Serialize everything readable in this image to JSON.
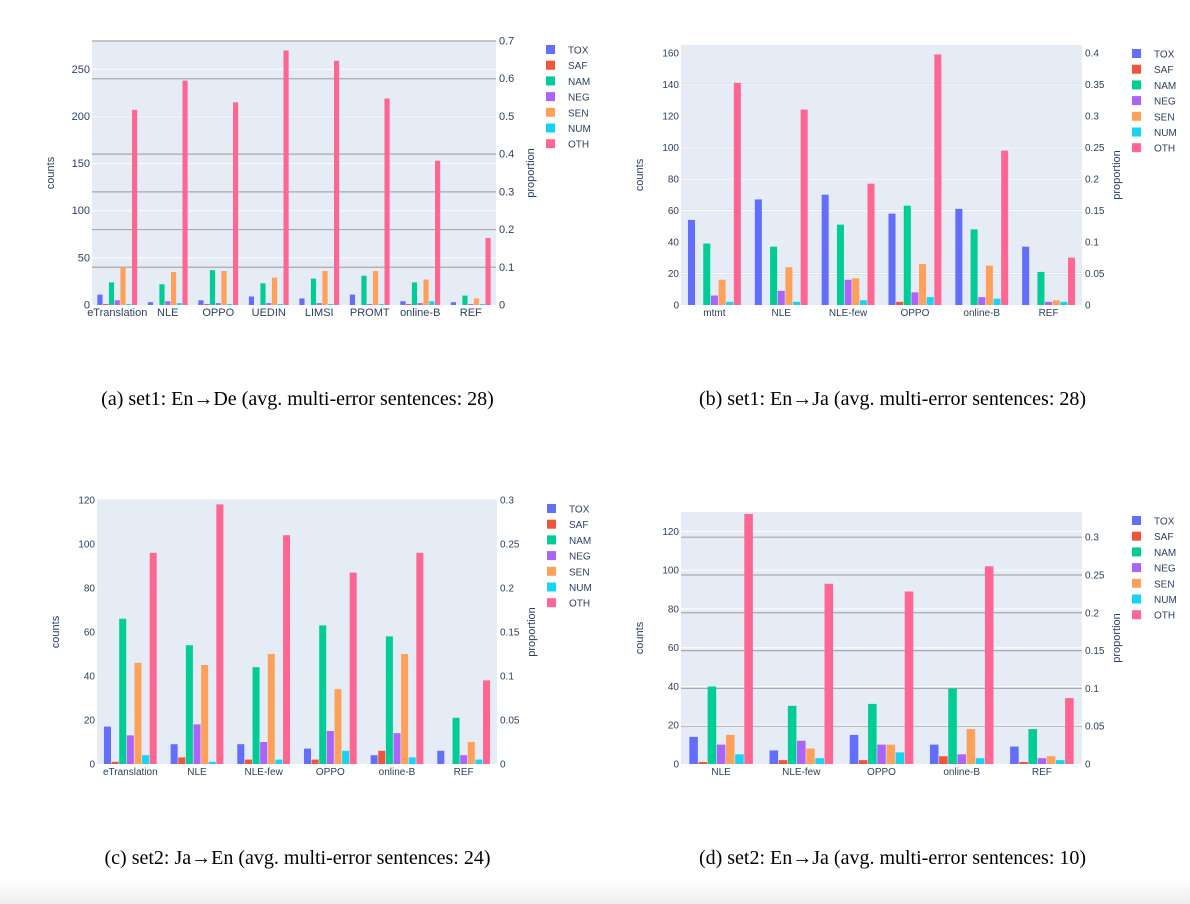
{
  "legend_entries": [
    "TOX",
    "SAF",
    "NAM",
    "NEG",
    "SEN",
    "NUM",
    "OTH"
  ],
  "colors": {
    "TOX": "#636efa",
    "SAF": "#ef553b",
    "NAM": "#00cc96",
    "NEG": "#ab63fa",
    "SEN": "#ffa15a",
    "NUM": "#19d3f3",
    "OTH": "#ff6692",
    "plot_bg": "#e5ecf6",
    "grid_primary": "#ffffff",
    "grid_secondary": "#a9a9a9",
    "axis_text": "#2a3f5f"
  },
  "chart_data": [
    {
      "type": "bar",
      "caption": "(a) set1: En→De (avg. multi-error sentences: 28)",
      "ylabel": "counts",
      "y2label": "proportion",
      "categories": [
        "eTranslation",
        "NLE",
        "OPPO",
        "UEDIN",
        "LIMSI",
        "PROMT",
        "online-B",
        "REF"
      ],
      "ylim": [
        0,
        280
      ],
      "yticks": [
        0,
        50,
        100,
        150,
        200,
        250
      ],
      "y2lim": [
        0,
        0.7
      ],
      "y2ticks": [
        0,
        0.1,
        0.2,
        0.3,
        0.4,
        0.5,
        0.6,
        0.7
      ],
      "legend_position": "top-right",
      "series": [
        {
          "name": "TOX",
          "values": [
            11,
            3,
            5,
            9,
            7,
            11,
            4,
            3
          ]
        },
        {
          "name": "SAF",
          "values": [
            1,
            0,
            1,
            0,
            0,
            0,
            1,
            0
          ]
        },
        {
          "name": "NAM",
          "values": [
            24,
            22,
            37,
            23,
            28,
            31,
            24,
            10
          ]
        },
        {
          "name": "NEG",
          "values": [
            5,
            4,
            2,
            2,
            2,
            1,
            2,
            1
          ]
        },
        {
          "name": "SEN",
          "values": [
            40,
            35,
            36,
            29,
            36,
            36,
            27,
            7
          ]
        },
        {
          "name": "NUM",
          "values": [
            1,
            2,
            1,
            1,
            1,
            1,
            4,
            1
          ]
        },
        {
          "name": "OTH",
          "values": [
            207,
            238,
            215,
            270,
            259,
            219,
            153,
            71
          ]
        }
      ]
    },
    {
      "type": "bar",
      "caption": "(b) set1: En→Ja (avg. multi-error sentences: 28)",
      "ylabel": "counts",
      "y2label": "proportion",
      "categories": [
        "mtmt",
        "NLE",
        "NLE-few",
        "OPPO",
        "online-B",
        "REF"
      ],
      "ylim": [
        0,
        165
      ],
      "yticks": [
        0,
        20,
        40,
        60,
        80,
        100,
        120,
        140,
        160
      ],
      "y2lim": [
        0,
        0.4125
      ],
      "y2ticks": [
        0,
        0.05,
        0.1,
        0.15,
        0.2,
        0.25,
        0.3,
        0.35,
        0.4
      ],
      "legend_position": "top-right",
      "series": [
        {
          "name": "TOX",
          "values": [
            54,
            67,
            70,
            58,
            61,
            37
          ]
        },
        {
          "name": "SAF",
          "values": [
            0,
            0,
            0,
            2,
            0,
            0
          ]
        },
        {
          "name": "NAM",
          "values": [
            39,
            37,
            51,
            63,
            48,
            21
          ]
        },
        {
          "name": "NEG",
          "values": [
            6,
            9,
            16,
            8,
            5,
            2
          ]
        },
        {
          "name": "SEN",
          "values": [
            16,
            24,
            17,
            26,
            25,
            3
          ]
        },
        {
          "name": "NUM",
          "values": [
            2,
            2,
            3,
            5,
            4,
            2
          ]
        },
        {
          "name": "OTH",
          "values": [
            141,
            124,
            77,
            159,
            98,
            30
          ]
        }
      ]
    },
    {
      "type": "bar",
      "caption": "(c) set2: Ja→En (avg. multi-error sentences: 24)",
      "ylabel": "counts",
      "y2label": "proportion",
      "categories": [
        "eTranslation",
        "NLE",
        "NLE-few",
        "OPPO",
        "online-B",
        "REF"
      ],
      "ylim": [
        0,
        120
      ],
      "yticks": [
        0,
        20,
        40,
        60,
        80,
        100,
        120
      ],
      "y2lim": [
        0,
        0.3
      ],
      "y2ticks": [
        0,
        0.05,
        0.1,
        0.15,
        0.2,
        0.25,
        0.3
      ],
      "legend_position": "top-right",
      "series": [
        {
          "name": "TOX",
          "values": [
            17,
            9,
            9,
            7,
            4,
            6
          ]
        },
        {
          "name": "SAF",
          "values": [
            1,
            3,
            2,
            2,
            6,
            0
          ]
        },
        {
          "name": "NAM",
          "values": [
            66,
            54,
            44,
            63,
            58,
            21
          ]
        },
        {
          "name": "NEG",
          "values": [
            13,
            18,
            10,
            15,
            14,
            4
          ]
        },
        {
          "name": "SEN",
          "values": [
            46,
            45,
            50,
            34,
            50,
            10
          ]
        },
        {
          "name": "NUM",
          "values": [
            4,
            1,
            2,
            6,
            3,
            2
          ]
        },
        {
          "name": "OTH",
          "values": [
            96,
            118,
            104,
            87,
            96,
            38
          ]
        }
      ]
    },
    {
      "type": "bar",
      "caption": "(d) set2: En→Ja (avg. multi-error sentences: 10)",
      "ylabel": "counts",
      "y2label": "proportion",
      "categories": [
        "NLE",
        "NLE-few",
        "OPPO",
        "online-B",
        "REF"
      ],
      "ylim": [
        0,
        130
      ],
      "yticks": [
        0,
        20,
        40,
        60,
        80,
        100,
        120
      ],
      "y2lim": [
        0,
        0.3333
      ],
      "y2ticks": [
        0,
        0.05,
        0.1,
        0.15,
        0.2,
        0.25,
        0.3
      ],
      "legend_position": "top-right",
      "series": [
        {
          "name": "TOX",
          "values": [
            14,
            7,
            15,
            10,
            9
          ]
        },
        {
          "name": "SAF",
          "values": [
            1,
            2,
            2,
            4,
            1
          ]
        },
        {
          "name": "NAM",
          "values": [
            40,
            30,
            31,
            39,
            18
          ]
        },
        {
          "name": "NEG",
          "values": [
            10,
            12,
            10,
            5,
            3
          ]
        },
        {
          "name": "SEN",
          "values": [
            15,
            8,
            10,
            18,
            4
          ]
        },
        {
          "name": "NUM",
          "values": [
            5,
            3,
            6,
            3,
            2
          ]
        },
        {
          "name": "OTH",
          "values": [
            129,
            93,
            89,
            102,
            34
          ]
        }
      ]
    }
  ]
}
